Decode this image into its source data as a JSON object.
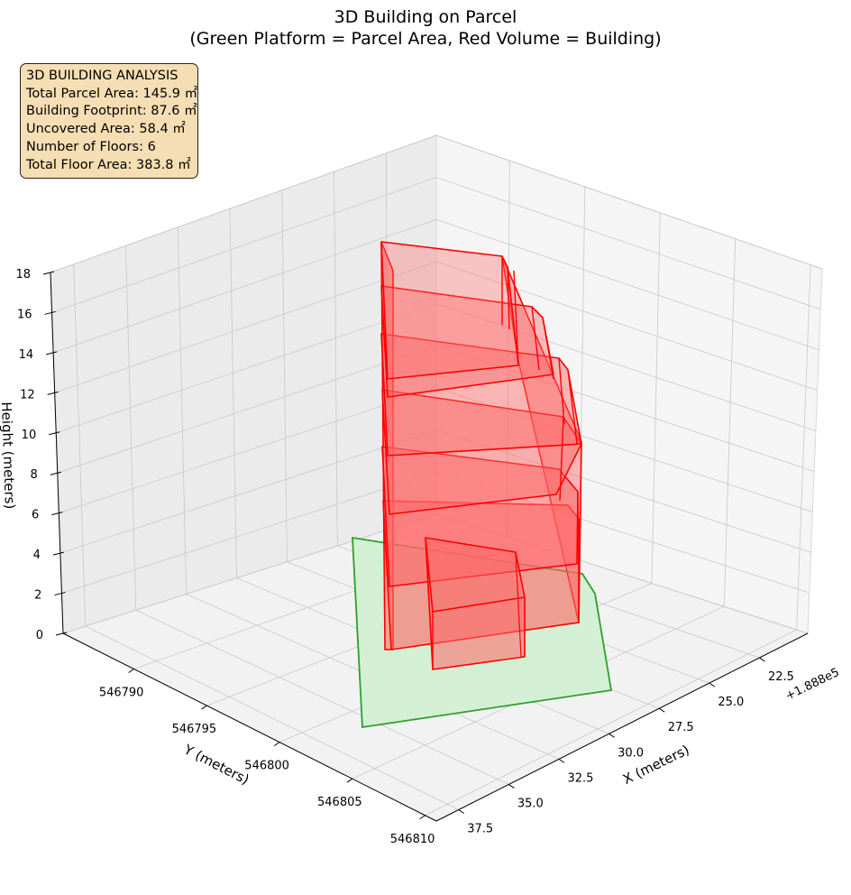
{
  "chart_data": {
    "type": "3d-polygon",
    "title": "3D Building on Parcel",
    "subtitle": "(Green Platform = Parcel Area, Red Volume = Building)",
    "xlabel": "X (meters)",
    "ylabel": "Y (meters)",
    "zlabel": "Height (meters)",
    "x_offset_label": "+1.888e5",
    "x_ticks": [
      "22.5",
      "25.0",
      "27.5",
      "30.0",
      "32.5",
      "35.0",
      "37.5"
    ],
    "y_ticks": [
      "546790",
      "546795",
      "546800",
      "546805",
      "546810"
    ],
    "z_ticks": [
      "0",
      "2",
      "4",
      "6",
      "8",
      "10",
      "12",
      "14",
      "16",
      "18"
    ],
    "grid": true,
    "parcel_color": "#2ca02c",
    "parcel_fill": "#d4f0d4",
    "building_color": "#ff0000",
    "building_fill": "#ff6666",
    "floors": 6,
    "stats": {
      "heading": "3D BUILDING ANALYSIS",
      "parcel_area": "Total Parcel Area: 145.9 ㎡",
      "footprint": "Building Footprint: 87.6 ㎡",
      "uncovered": "Uncovered Area: 58.4 ㎡",
      "floors": "Number of Floors: 6",
      "floor_area": "Total Floor Area: 383.8 ㎡"
    }
  }
}
